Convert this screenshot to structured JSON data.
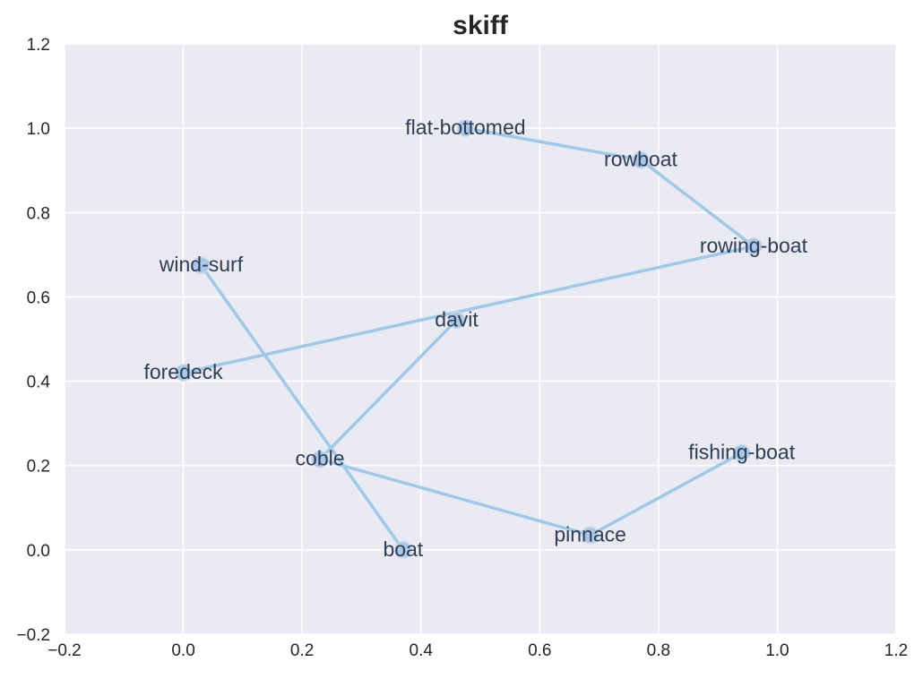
{
  "chart_data": {
    "type": "scatter",
    "title": "skiff",
    "xlim": [
      -0.2,
      1.2
    ],
    "ylim": [
      -0.2,
      1.2
    ],
    "x_ticks": [
      "−0.2",
      "0.0",
      "0.2",
      "0.4",
      "0.6",
      "0.8",
      "1.0",
      "1.2"
    ],
    "y_ticks": [
      "−0.2",
      "0.0",
      "0.2",
      "0.4",
      "0.6",
      "0.8",
      "1.0",
      "1.2"
    ],
    "x_tick_values": [
      -0.2,
      0.0,
      0.2,
      0.4,
      0.6,
      0.8,
      1.0,
      1.2
    ],
    "y_tick_values": [
      -0.2,
      0.0,
      0.2,
      0.4,
      0.6,
      0.8,
      1.0,
      1.2
    ],
    "grid": true,
    "points": [
      {
        "label": "flat-bottomed",
        "x": 0.475,
        "y": 1.0
      },
      {
        "label": "rowboat",
        "x": 0.77,
        "y": 0.925
      },
      {
        "label": "rowing-boat",
        "x": 0.96,
        "y": 0.72
      },
      {
        "label": "davit",
        "x": 0.46,
        "y": 0.545
      },
      {
        "label": "foredeck",
        "x": 0.0,
        "y": 0.42
      },
      {
        "label": "wind-surf",
        "x": 0.03,
        "y": 0.675
      },
      {
        "label": "coble",
        "x": 0.23,
        "y": 0.215
      },
      {
        "label": "boat",
        "x": 0.37,
        "y": 0.0
      },
      {
        "label": "pinnace",
        "x": 0.685,
        "y": 0.035
      },
      {
        "label": "fishing-boat",
        "x": 0.94,
        "y": 0.23
      }
    ],
    "edges": [
      [
        "flat-bottomed",
        "rowboat"
      ],
      [
        "rowboat",
        "rowing-boat"
      ],
      [
        "rowing-boat",
        "foredeck"
      ],
      [
        "davit",
        "coble"
      ],
      [
        "wind-surf",
        "boat"
      ],
      [
        "coble",
        "pinnace"
      ],
      [
        "pinnace",
        "fishing-boat"
      ]
    ],
    "colors": {
      "background": "#eaeaf2",
      "edge": "#9ec9e8",
      "marker": "#a7c8e6",
      "label": "#2f3e55"
    }
  }
}
